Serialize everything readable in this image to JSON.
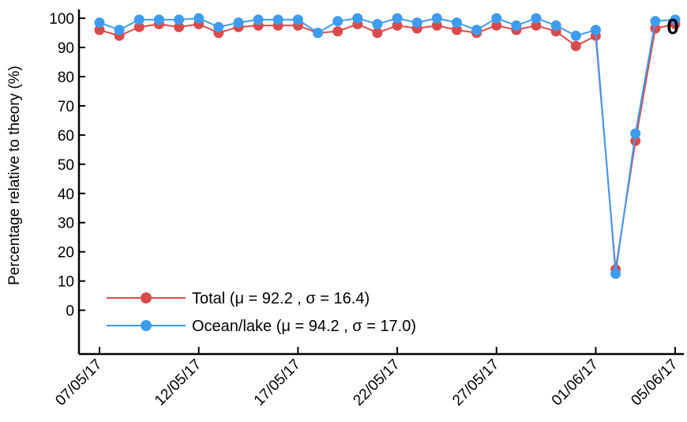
{
  "chart_data": {
    "type": "line",
    "ylabel": "Percentage relative to theory (%)",
    "xlabel": "",
    "ylim": [
      -15,
      103
    ],
    "yticks": [
      0,
      10,
      20,
      30,
      40,
      50,
      60,
      70,
      80,
      90,
      100
    ],
    "xtick_labels": [
      "07/05/17",
      "12/05/17",
      "17/05/17",
      "22/05/17",
      "27/05/17",
      "01/06/17",
      "05/06/17"
    ],
    "x": [
      "07/05/17",
      "08/05/17",
      "09/05/17",
      "10/05/17",
      "11/05/17",
      "12/05/17",
      "13/05/17",
      "14/05/17",
      "15/05/17",
      "16/05/17",
      "17/05/17",
      "18/05/17",
      "19/05/17",
      "20/05/17",
      "21/05/17",
      "22/05/17",
      "23/05/17",
      "24/05/17",
      "25/05/17",
      "26/05/17",
      "27/05/17",
      "28/05/17",
      "29/05/17",
      "30/05/17",
      "31/05/17",
      "01/06/17",
      "02/06/17",
      "03/06/17",
      "04/06/17",
      "05/06/17"
    ],
    "series": [
      {
        "name": "Total (μ = 92.2 , σ = 16.4)",
        "color": "#d94b4b",
        "values": [
          96,
          94,
          97,
          98,
          97,
          98,
          95,
          97,
          97.5,
          97.5,
          97.5,
          95,
          95.5,
          98,
          95,
          97.5,
          96.5,
          97.5,
          96,
          95,
          97.5,
          96,
          97.5,
          95.5,
          90.5,
          94,
          14,
          58,
          96.5,
          98
        ]
      },
      {
        "name": "Ocean/lake (μ = 94.2 , σ = 17.0)",
        "color": "#3d9cf0",
        "values": [
          98.5,
          96,
          99.5,
          99.5,
          99.5,
          100,
          97,
          98.5,
          99.5,
          99.5,
          99.5,
          95,
          99,
          100,
          98,
          100,
          98.5,
          100,
          98.5,
          96,
          100,
          97.5,
          100,
          97.5,
          94,
          96,
          12.5,
          60.5,
          99,
          99.5
        ]
      }
    ],
    "grid": false,
    "legend_position": "lower-left",
    "side_label": "0"
  }
}
